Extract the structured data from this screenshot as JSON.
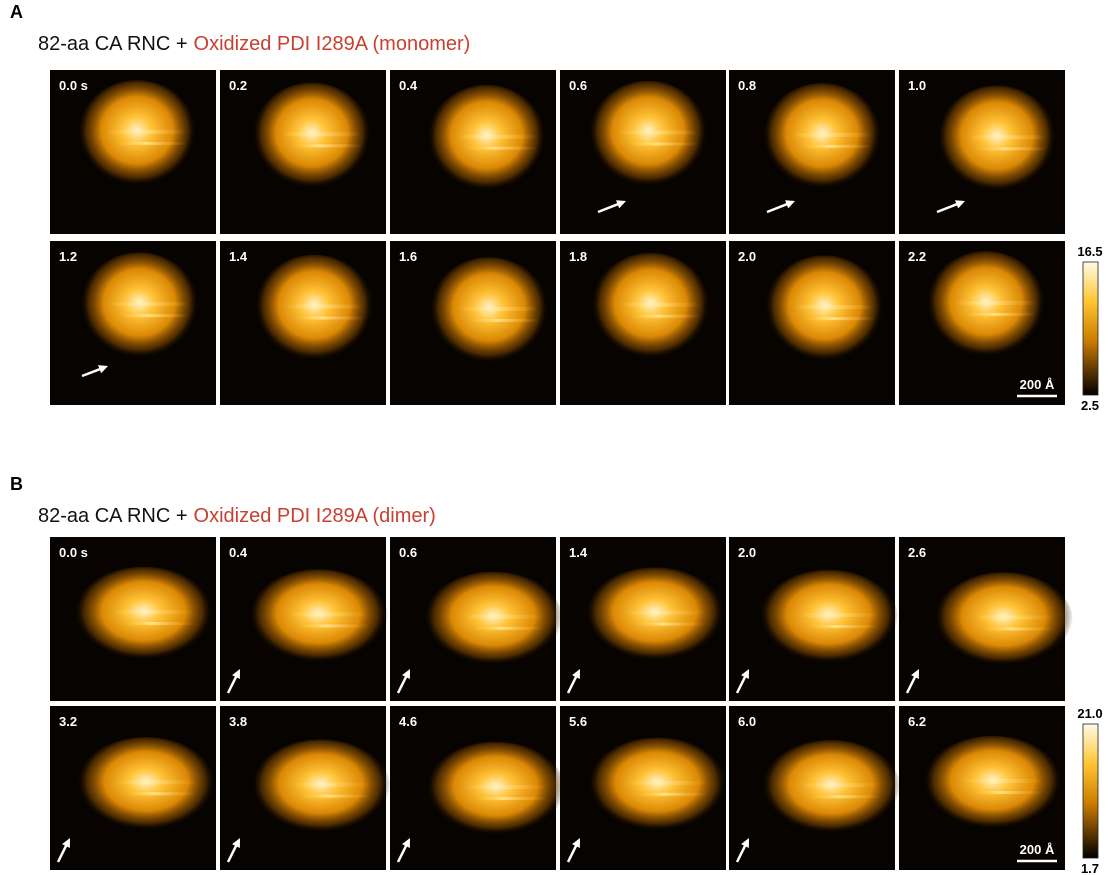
{
  "panels": [
    {
      "label": "A",
      "title_prefix": "82-aa CA RNC +",
      "title_highlight": "Oxidized PDI I289A (monomer)",
      "frames": [
        "0.0 s",
        "0.2",
        "0.4",
        "0.6",
        "0.8",
        "1.0",
        "1.2",
        "1.4",
        "1.6",
        "1.8",
        "2.0",
        "2.2"
      ],
      "scale_bar": "200 Å",
      "colorbar": {
        "max": "16.5",
        "min": "2.5"
      }
    },
    {
      "label": "B",
      "title_prefix": "82-aa CA RNC +",
      "title_highlight": "Oxidized PDI I289A (dimer)",
      "frames": [
        "0.0 s",
        "0.4",
        "0.6",
        "1.4",
        "2.0",
        "2.6",
        "3.2",
        "3.8",
        "4.6",
        "5.6",
        "6.0",
        "6.2"
      ],
      "scale_bar": "200 Å",
      "colorbar": {
        "max": "21.0",
        "min": "1.7"
      }
    }
  ]
}
